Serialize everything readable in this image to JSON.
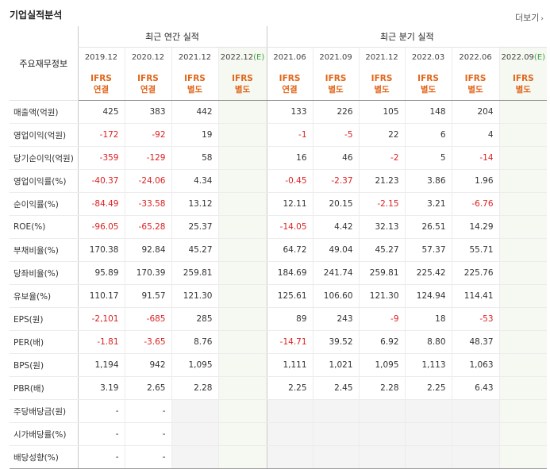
{
  "title": "기업실적분석",
  "more_label": "더보기",
  "more_icon": "chevron-right-icon",
  "row_header": "주요재무정보",
  "annual_header": "최근 연간 실적",
  "quarter_header": "최근 분기 실적",
  "columns": [
    {
      "period": "2019.12",
      "std1": "IFRS",
      "std2": "연결",
      "estimate": false,
      "group": "annual"
    },
    {
      "period": "2020.12",
      "std1": "IFRS",
      "std2": "연결",
      "estimate": false,
      "group": "annual"
    },
    {
      "period": "2021.12",
      "std1": "IFRS",
      "std2": "별도",
      "estimate": false,
      "group": "annual"
    },
    {
      "period": "2022.12",
      "est": "(E)",
      "std1": "IFRS",
      "std2": "별도",
      "estimate": true,
      "group": "annual"
    },
    {
      "period": "2021.06",
      "std1": "IFRS",
      "std2": "연결",
      "estimate": false,
      "group": "quarter"
    },
    {
      "period": "2021.09",
      "std1": "IFRS",
      "std2": "별도",
      "estimate": false,
      "group": "quarter"
    },
    {
      "period": "2021.12",
      "std1": "IFRS",
      "std2": "별도",
      "estimate": false,
      "group": "quarter"
    },
    {
      "period": "2022.03",
      "std1": "IFRS",
      "std2": "별도",
      "estimate": false,
      "group": "quarter"
    },
    {
      "period": "2022.06",
      "std1": "IFRS",
      "std2": "별도",
      "estimate": false,
      "group": "quarter"
    },
    {
      "period": "2022.09",
      "est": "(E)",
      "std1": "IFRS",
      "std2": "별도",
      "estimate": true,
      "group": "quarter"
    }
  ],
  "rows": [
    {
      "label": "매출액(억원)",
      "values": [
        "425",
        "383",
        "442",
        "",
        "133",
        "226",
        "105",
        "148",
        "204",
        ""
      ]
    },
    {
      "label": "영업이익(억원)",
      "values": [
        "-172",
        "-92",
        "19",
        "",
        "-1",
        "-5",
        "22",
        "6",
        "4",
        ""
      ]
    },
    {
      "label": "당기순이익(억원)",
      "values": [
        "-359",
        "-129",
        "58",
        "",
        "16",
        "46",
        "-2",
        "5",
        "-14",
        ""
      ]
    },
    {
      "label": "영업이익률(%)",
      "values": [
        "-40.37",
        "-24.06",
        "4.34",
        "",
        "-0.45",
        "-2.37",
        "21.23",
        "3.86",
        "1.96",
        ""
      ]
    },
    {
      "label": "순이익률(%)",
      "values": [
        "-84.49",
        "-33.58",
        "13.12",
        "",
        "12.11",
        "20.15",
        "-2.15",
        "3.21",
        "-6.76",
        ""
      ]
    },
    {
      "label": "ROE(%)",
      "values": [
        "-96.05",
        "-65.28",
        "25.37",
        "",
        "-14.05",
        "4.42",
        "32.13",
        "26.51",
        "14.29",
        ""
      ]
    },
    {
      "label": "부채비율(%)",
      "values": [
        "170.38",
        "92.84",
        "45.27",
        "",
        "64.72",
        "49.04",
        "45.27",
        "57.37",
        "55.71",
        ""
      ]
    },
    {
      "label": "당좌비율(%)",
      "values": [
        "95.89",
        "170.39",
        "259.81",
        "",
        "184.69",
        "241.74",
        "259.81",
        "225.42",
        "225.76",
        ""
      ]
    },
    {
      "label": "유보율(%)",
      "values": [
        "110.17",
        "91.57",
        "121.30",
        "",
        "125.61",
        "106.60",
        "121.30",
        "124.94",
        "114.41",
        ""
      ]
    },
    {
      "label": "EPS(원)",
      "values": [
        "-2,101",
        "-685",
        "285",
        "",
        "89",
        "243",
        "-9",
        "18",
        "-53",
        ""
      ]
    },
    {
      "label": "PER(배)",
      "values": [
        "-1.81",
        "-3.65",
        "8.76",
        "",
        "-14.71",
        "39.52",
        "6.92",
        "8.80",
        "48.37",
        ""
      ]
    },
    {
      "label": "BPS(원)",
      "values": [
        "1,194",
        "942",
        "1,095",
        "",
        "1,111",
        "1,021",
        "1,095",
        "1,113",
        "1,063",
        ""
      ]
    },
    {
      "label": "PBR(배)",
      "values": [
        "3.19",
        "2.65",
        "2.28",
        "",
        "2.25",
        "2.45",
        "2.28",
        "2.25",
        "6.43",
        ""
      ]
    },
    {
      "label": "주당배당금(원)",
      "values": [
        "-",
        "-",
        "",
        "",
        "",
        "",
        "",
        "",
        "",
        ""
      ]
    },
    {
      "label": "시가배당률(%)",
      "values": [
        "-",
        "-",
        "",
        "",
        "",
        "",
        "",
        "",
        "",
        ""
      ]
    },
    {
      "label": "배당성향(%)",
      "values": [
        "-",
        "-",
        "",
        "",
        "",
        "",
        "",
        "",
        "",
        ""
      ]
    }
  ],
  "colors": {
    "negative": "#dd1f1f",
    "standard": "#e0661b",
    "estimate_mark": "#43a047",
    "estimate_bg": "#f5f9f1",
    "empty_bg": "#f4f4f4"
  }
}
